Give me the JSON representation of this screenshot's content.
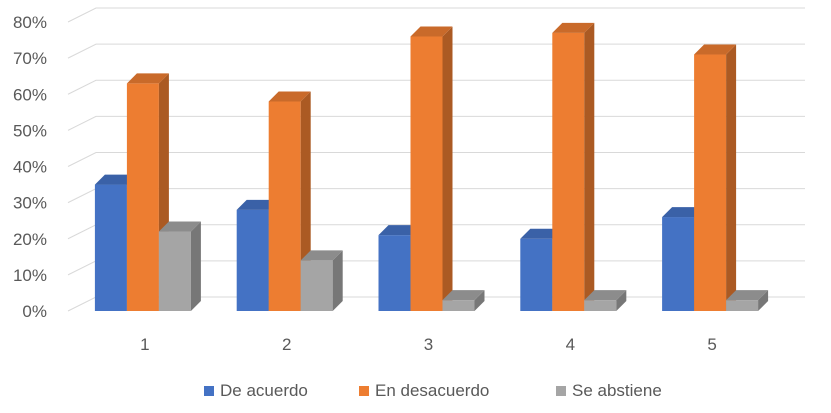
{
  "chart_data": {
    "type": "bar",
    "categories": [
      "1",
      "2",
      "3",
      "4",
      "5"
    ],
    "series": [
      {
        "name": "De acuerdo",
        "values": [
          0.35,
          0.28,
          0.21,
          0.2,
          0.26
        ],
        "color": "#4472C4"
      },
      {
        "name": "En desacuerdo",
        "values": [
          0.63,
          0.58,
          0.76,
          0.77,
          0.71
        ],
        "color": "#ED7D31"
      },
      {
        "name": "Se abstiene",
        "values": [
          0.22,
          0.14,
          0.03,
          0.03,
          0.03
        ],
        "color": "#A5A5A5"
      }
    ],
    "yticks": [
      "0%",
      "10%",
      "20%",
      "30%",
      "40%",
      "50%",
      "60%",
      "70%",
      "80%"
    ],
    "ylim": [
      0,
      0.8
    ],
    "grid": true,
    "legend_position": "bottom",
    "style": "3d-clustered-column"
  }
}
